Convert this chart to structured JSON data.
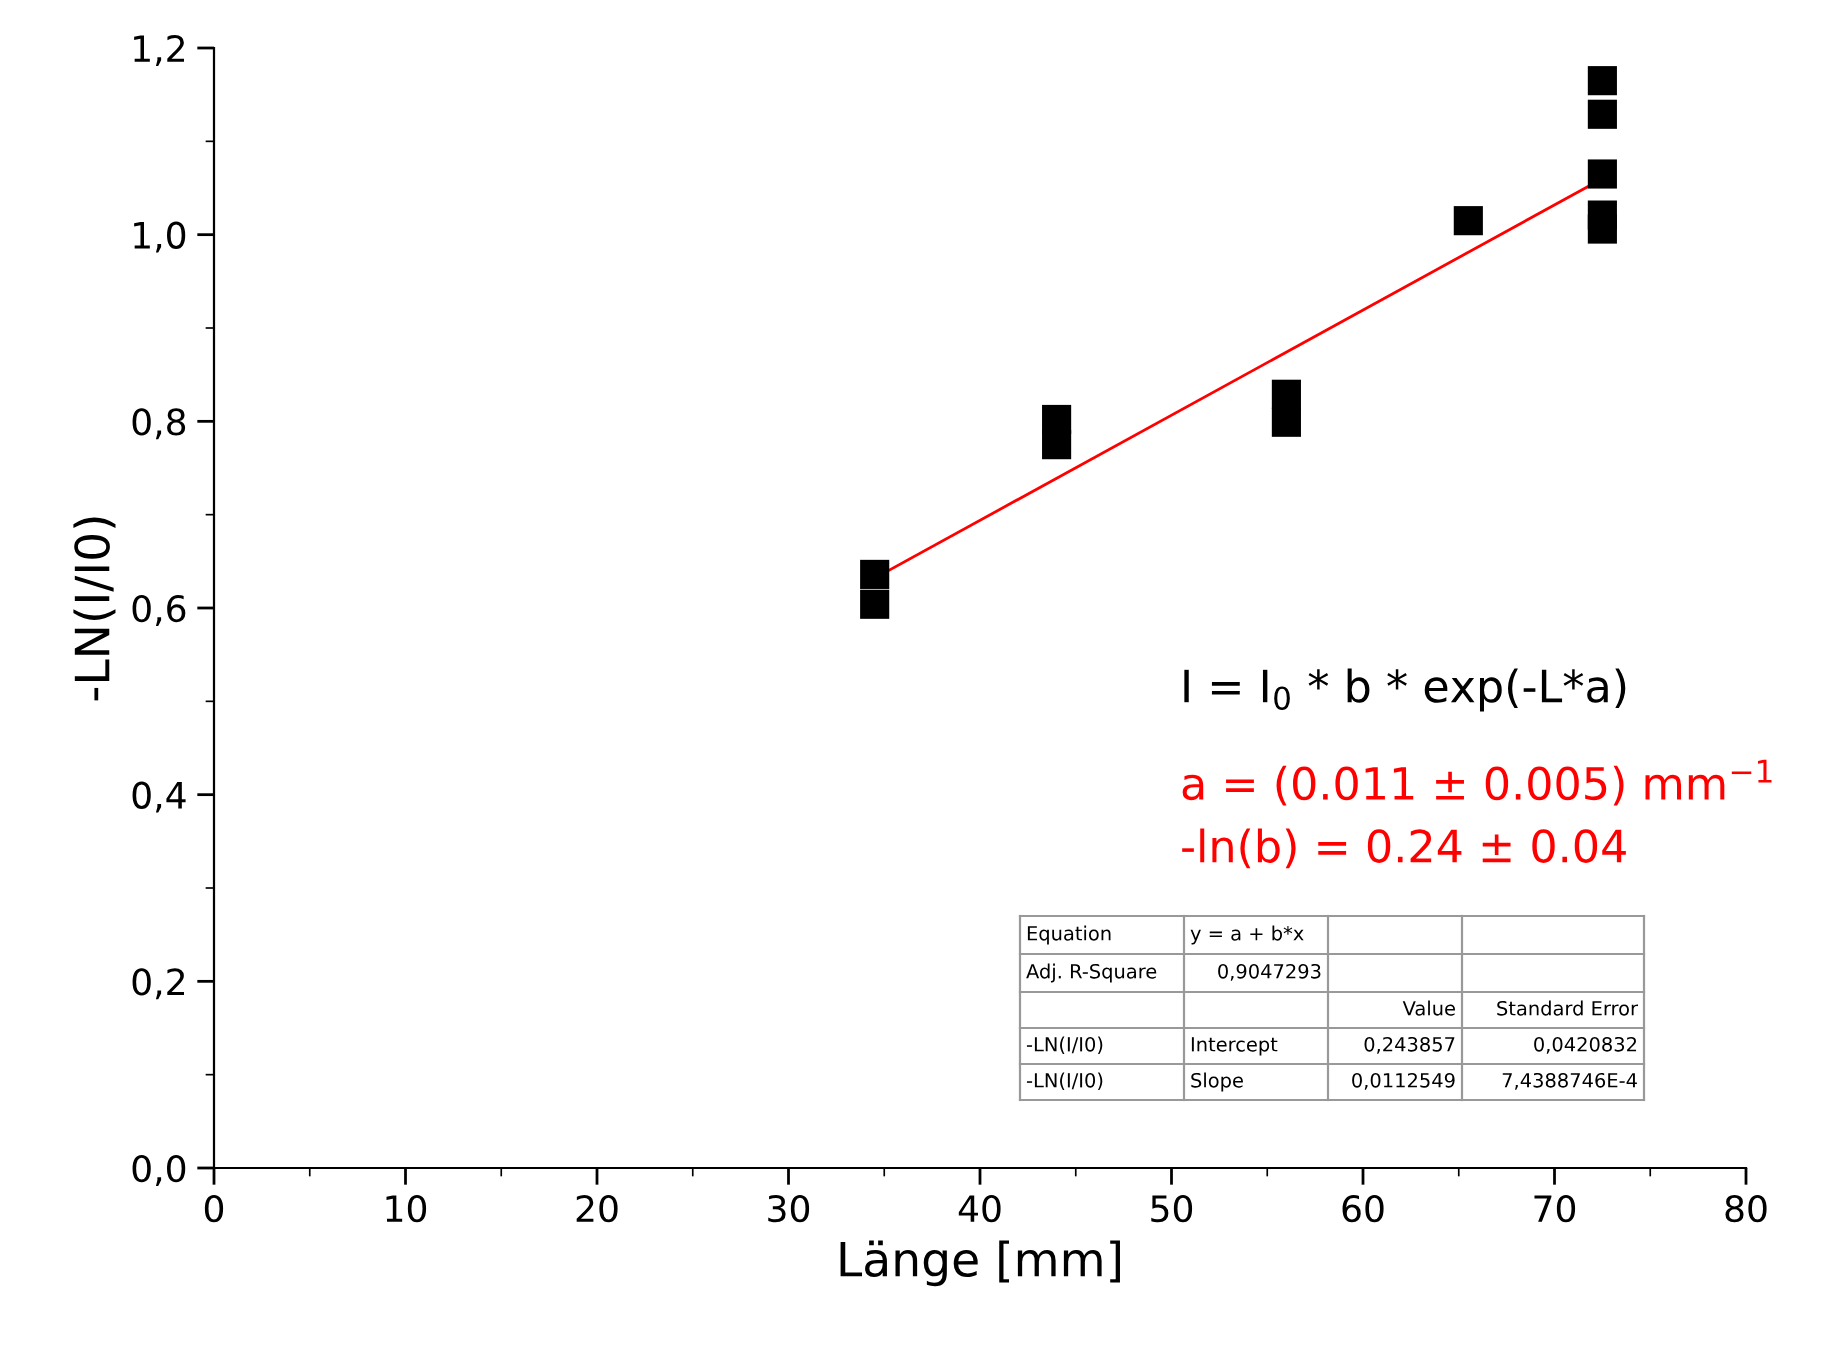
{
  "chart_data": {
    "type": "scatter",
    "xlabel": "Länge [mm]",
    "ylabel": "-LN(I/I0)",
    "series": [
      {
        "color": "#000000",
        "marker": "square",
        "x": [
          34.5,
          34.5,
          44,
          44,
          56,
          56,
          65.5,
          72.5,
          72.5,
          72.5,
          72.5,
          72.5
        ],
        "values": [
          0.636,
          0.604,
          0.802,
          0.775,
          0.829,
          0.799,
          1.015,
          1.165,
          1.129,
          1.065,
          1.021,
          1.006
        ]
      },
      {
        "type": "line",
        "color": "#ff0000",
        "marker": "none",
        "x": [
          34.5,
          72.5
        ],
        "values": [
          0.632,
          1.06
        ]
      }
    ],
    "xlim": [
      0,
      80
    ],
    "xticks": [
      0,
      10,
      20,
      30,
      40,
      50,
      60,
      70,
      80
    ],
    "ylim": [
      0,
      1.2
    ],
    "yticks": [
      {
        "value": 0,
        "label": "0,0"
      },
      {
        "value": 0.2,
        "label": "0,2"
      },
      {
        "value": 0.4,
        "label": "0,4"
      },
      {
        "value": 0.6,
        "label": "0,6"
      },
      {
        "value": 0.8,
        "label": "0,8"
      },
      {
        "value": 1.0,
        "label": "1,0"
      },
      {
        "value": 1.2,
        "label": "1,2"
      }
    ],
    "grid": false,
    "legend": false,
    "annotations": [
      "I = I$_{0}$ * b * exp(-L*a)",
      "a = (0.011 ± 0.005) mm$^{−1}$",
      "-ln(b) = 0.24 ± 0.04",
      "Equation",
      "y = a + b*x",
      "Adj. R-Square",
      "0,9047293",
      "Value",
      "Standard Error",
      "-LN(I/I0)",
      "Intercept",
      "0,243857",
      "0,0420832",
      "-LN(I/I0)",
      "Slope",
      "0,0112549",
      "7,4388746E-4"
    ]
  }
}
